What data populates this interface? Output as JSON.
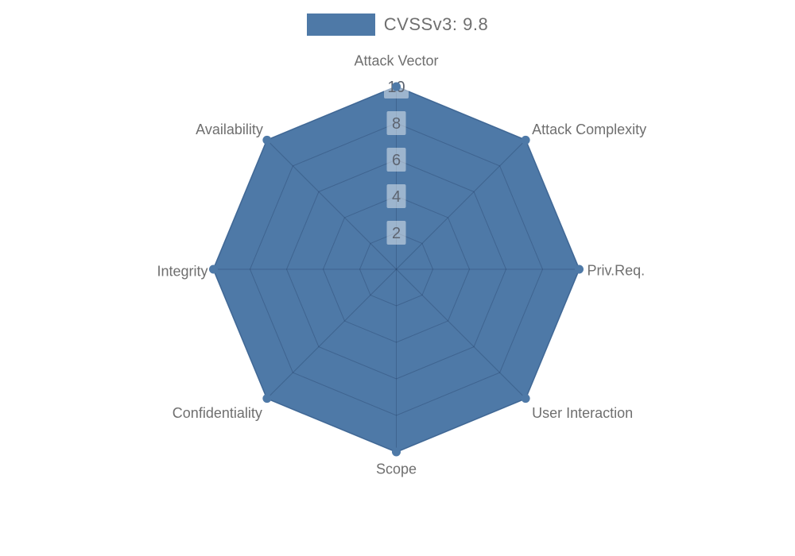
{
  "legend": {
    "label": "CVSSv3: 9.8"
  },
  "chart_data": {
    "type": "radar",
    "title": "",
    "indicators": [
      "Attack Vector",
      "Attack Complexity",
      "Priv.Req.",
      "User Interaction",
      "Scope",
      "Confidentiality",
      "Integrity",
      "Availability"
    ],
    "max": 10,
    "ticks": [
      2,
      4,
      6,
      8,
      10
    ],
    "series": [
      {
        "name": "CVSSv3: 9.8",
        "values": [
          10,
          10,
          10,
          10,
          10,
          10,
          10,
          10
        ]
      }
    ],
    "legend_position": "top-center",
    "grid": true,
    "colors": {
      "fill": "#4e79a7",
      "grid_line": "rgba(15, 35, 70, 0.24)",
      "axis_label": "#6f6f6f",
      "tick_text": "#5d6470",
      "tick_bg": "rgba(255, 255, 255, 0.45)"
    }
  }
}
